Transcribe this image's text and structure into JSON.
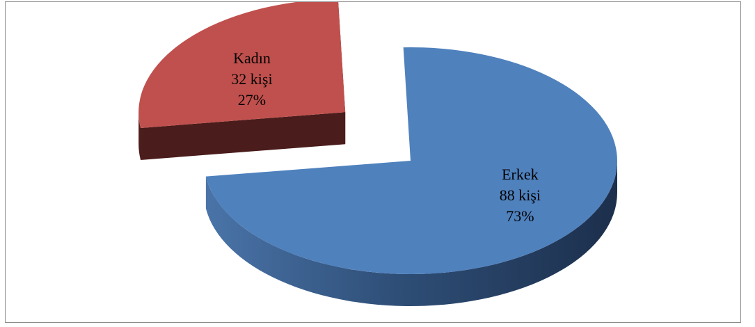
{
  "chart_data": {
    "type": "pie",
    "style": "3d-exploded",
    "title": "",
    "slices": [
      {
        "category": "Erkek",
        "count_label": "88 kişi",
        "percent_label": "73%",
        "value": 88,
        "percent": 73,
        "color": "#4f81bd",
        "side_color": "#1f3554"
      },
      {
        "category": "Kadın",
        "count_label": "32 kişi",
        "percent_label": "27%",
        "value": 32,
        "percent": 27,
        "color": "#c0504d",
        "side_color": "#4a1c1b"
      }
    ]
  }
}
